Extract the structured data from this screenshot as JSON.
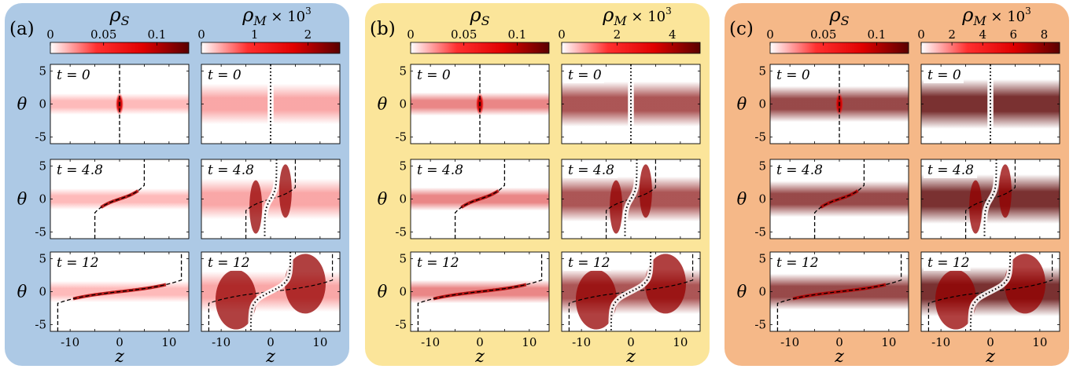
{
  "figure": {
    "panels": [
      {
        "label": "(a)",
        "bg": "#adc9e5"
      },
      {
        "label": "(b)",
        "bg": "#fbe59a"
      },
      {
        "label": "(c)",
        "bg": "#f5b888"
      }
    ],
    "z_label": "z",
    "theta_label": "θ",
    "rho_s_title": "ρ",
    "rho_s_sub": "S",
    "rho_m_title": "ρ",
    "rho_m_sub": "M",
    "rho_m_suffix": "× 10",
    "rho_m_exp": "3",
    "time_labels": [
      "t = 0",
      "t = 4.8",
      "t = 12"
    ],
    "colormap": [
      "#ffffff",
      "#ff3030",
      "#e00000",
      "#5a0000"
    ]
  },
  "chart_data": [
    {
      "type": "heatmap",
      "panel": "(a)",
      "column": "ρS",
      "colorbar_ticks": [
        "0",
        "0.05",
        "0.1"
      ],
      "colorbar_range": [
        0,
        0.13
      ],
      "xlim": [
        -14,
        14
      ],
      "ylim": [
        -6,
        6
      ],
      "x_ticks": [
        "-10",
        "0",
        "10"
      ],
      "y_ticks": [
        "5",
        "0",
        "-5"
      ],
      "times": [
        0,
        4.8,
        12
      ],
      "xlabel": "z",
      "ylabel": "θ",
      "band_halfwidth": 1,
      "band_intensity": 0.15
    },
    {
      "type": "heatmap",
      "panel": "(a)",
      "column": "ρM×10^3",
      "colorbar_ticks": [
        "0",
        "1",
        "2"
      ],
      "colorbar_range": [
        0,
        2.6
      ],
      "xlim": [
        -14,
        14
      ],
      "ylim": [
        -6,
        6
      ],
      "x_ticks": [
        "-10",
        "0",
        "10"
      ],
      "times": [
        0,
        4.8,
        12
      ],
      "xlabel": "z",
      "band_halfwidth": 1.8,
      "band_intensity": 0.3
    },
    {
      "type": "heatmap",
      "panel": "(b)",
      "column": "ρS",
      "colorbar_ticks": [
        "0",
        "0.05",
        "0.1"
      ],
      "colorbar_range": [
        0,
        0.13
      ],
      "xlim": [
        -14,
        14
      ],
      "ylim": [
        -6,
        6
      ],
      "x_ticks": [
        "-10",
        "0",
        "10"
      ],
      "y_ticks": [
        "5",
        "0",
        "-5"
      ],
      "times": [
        0,
        4.8,
        12
      ],
      "xlabel": "z",
      "ylabel": "θ",
      "band_halfwidth": 1.1,
      "band_intensity": 0.5
    },
    {
      "type": "heatmap",
      "panel": "(b)",
      "column": "ρM×10^3",
      "colorbar_ticks": [
        "0",
        "2",
        "4"
      ],
      "colorbar_range": [
        0,
        5
      ],
      "xlim": [
        -14,
        14
      ],
      "ylim": [
        -6,
        6
      ],
      "x_ticks": [
        "-10",
        "0",
        "10"
      ],
      "times": [
        0,
        4.8,
        12
      ],
      "xlabel": "z",
      "band_halfwidth": 2,
      "band_intensity": 0.7
    },
    {
      "type": "heatmap",
      "panel": "(c)",
      "column": "ρS",
      "colorbar_ticks": [
        "0",
        "0.05",
        "0.1"
      ],
      "colorbar_range": [
        0,
        0.13
      ],
      "xlim": [
        -14,
        14
      ],
      "ylim": [
        -6,
        6
      ],
      "x_ticks": [
        "-10",
        "0",
        "10"
      ],
      "y_ticks": [
        "5",
        "0",
        "-5"
      ],
      "times": [
        0,
        4.8,
        12
      ],
      "xlabel": "z",
      "ylabel": "θ",
      "band_halfwidth": 1.7,
      "band_intensity": 0.75
    },
    {
      "type": "heatmap",
      "panel": "(c)",
      "column": "ρM×10^3",
      "colorbar_ticks": [
        "0",
        "2",
        "4",
        "6",
        "8"
      ],
      "colorbar_range": [
        0,
        9
      ],
      "xlim": [
        -14,
        14
      ],
      "ylim": [
        -6,
        6
      ],
      "x_ticks": [
        "-10",
        "0",
        "10"
      ],
      "times": [
        0,
        4.8,
        12
      ],
      "xlabel": "z",
      "band_halfwidth": 2.2,
      "band_intensity": 0.85
    }
  ]
}
